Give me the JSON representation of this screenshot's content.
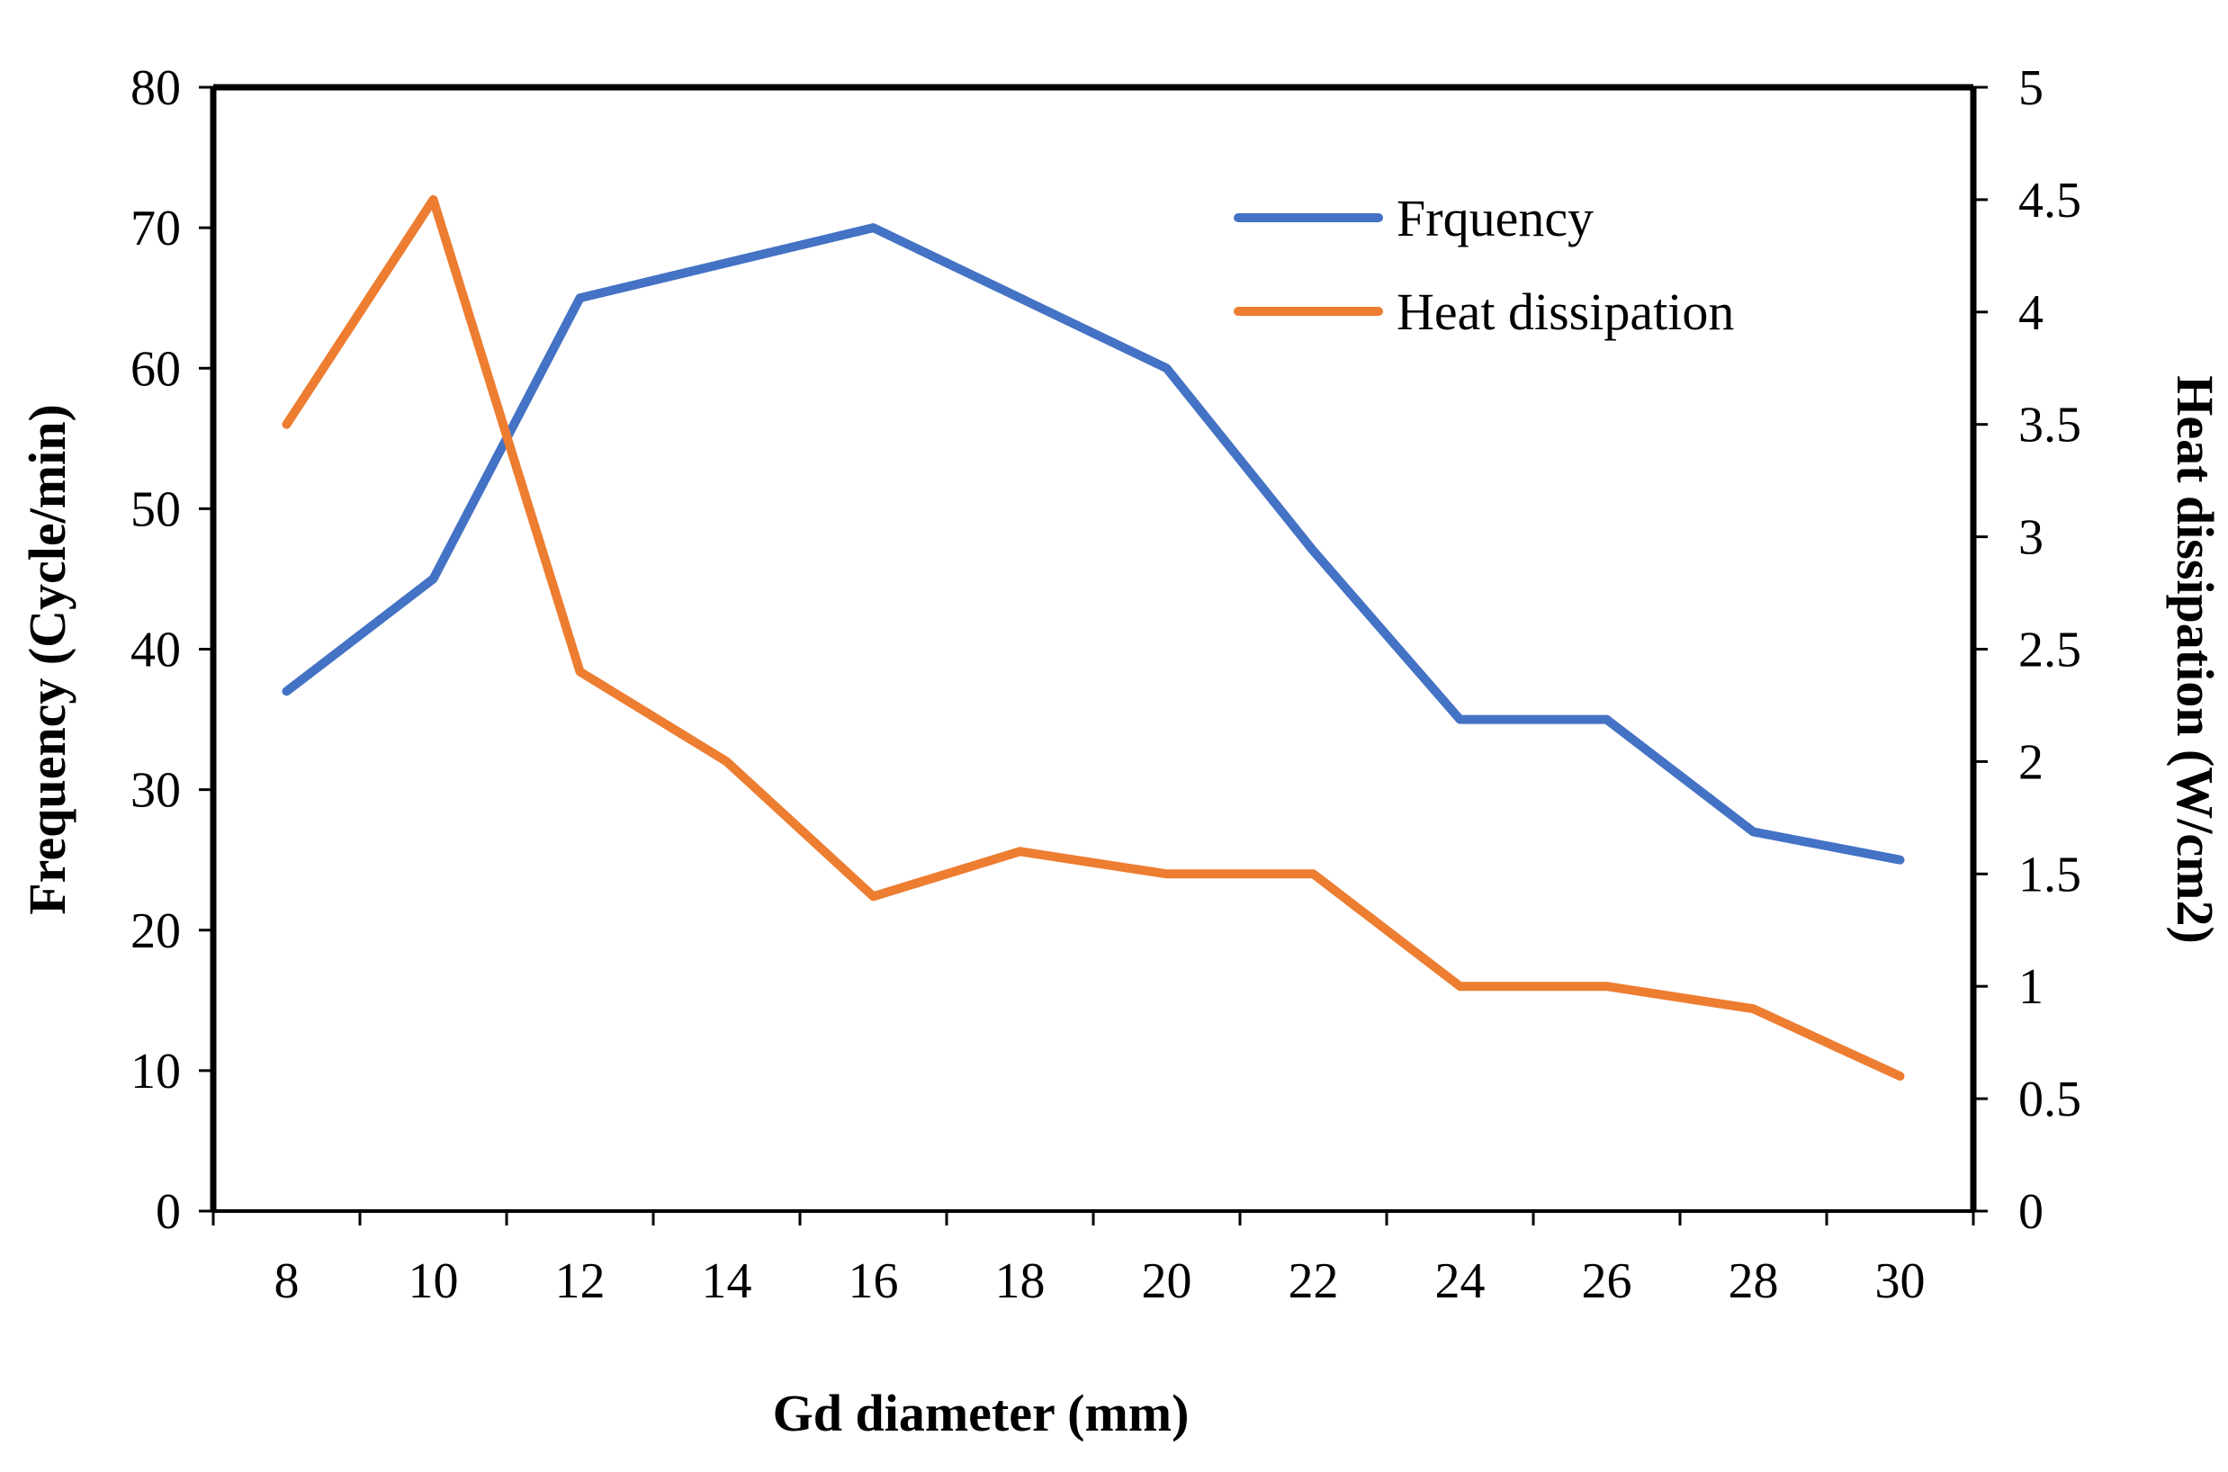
{
  "chart_data": {
    "type": "line",
    "title": "",
    "xlabel": "Gd diameter (mm)",
    "ylabel_left": "Frequency (Cycle/min)",
    "ylabel_right": "Heat dissipation (W/cm2)",
    "categories": [
      "8",
      "10",
      "12",
      "14",
      "16",
      "18",
      "20",
      "22",
      "24",
      "26",
      "28",
      "30"
    ],
    "ylim_left": [
      0,
      80
    ],
    "yticks_left": [
      "0",
      "10",
      "20",
      "30",
      "40",
      "50",
      "60",
      "70",
      "80"
    ],
    "ylim_right": [
      0,
      5
    ],
    "yticks_right": [
      "0",
      "0.5",
      "1",
      "1.5",
      "2",
      "2.5",
      "3",
      "3.5",
      "4",
      "4.5",
      "5"
    ],
    "grid": false,
    "legend_position": "top-right",
    "series": [
      {
        "name": "Frquency",
        "axis": "left",
        "color": "#4472C4",
        "x": [
          8,
          10,
          12,
          16,
          20,
          22,
          24,
          26,
          28,
          30
        ],
        "values": [
          37,
          45,
          65,
          70,
          60,
          47,
          35,
          35,
          27,
          25
        ]
      },
      {
        "name": "Heat dissipation",
        "axis": "right",
        "color": "#ED7D31",
        "x": [
          8,
          10,
          12,
          14,
          16,
          18,
          20,
          22,
          24,
          26,
          28,
          30
        ],
        "values": [
          3.5,
          4.5,
          2.4,
          2.0,
          1.4,
          1.6,
          1.5,
          1.5,
          1.0,
          1.0,
          0.9,
          0.6
        ]
      }
    ]
  }
}
